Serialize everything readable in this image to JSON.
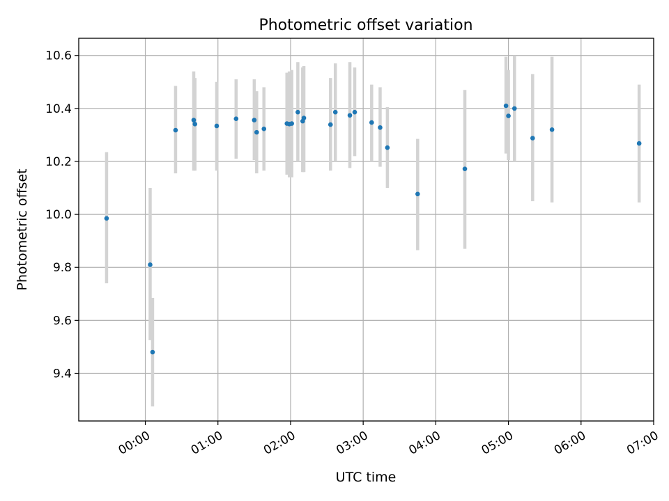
{
  "chart_data": {
    "type": "scatter",
    "title": "Photometric offset variation",
    "xlabel": "UTC time",
    "ylabel": "Photometric offset",
    "x_unit": "minutes",
    "xlim": [
      -55,
      420
    ],
    "ylim": [
      9.22,
      10.665
    ],
    "x_ticks": [
      {
        "value": 0,
        "label": "00:00"
      },
      {
        "value": 60,
        "label": "01:00"
      },
      {
        "value": 120,
        "label": "02:00"
      },
      {
        "value": 180,
        "label": "03:00"
      },
      {
        "value": 240,
        "label": "04:00"
      },
      {
        "value": 300,
        "label": "05:00"
      },
      {
        "value": 360,
        "label": "06:00"
      },
      {
        "value": 420,
        "label": "07:00"
      }
    ],
    "y_ticks": [
      {
        "value": 9.4,
        "label": "9.4"
      },
      {
        "value": 9.6,
        "label": "9.6"
      },
      {
        "value": 9.8,
        "label": "9.8"
      },
      {
        "value": 10.0,
        "label": "10.0"
      },
      {
        "value": 10.2,
        "label": "10.2"
      },
      {
        "value": 10.4,
        "label": "10.4"
      },
      {
        "value": 10.6,
        "label": "10.6"
      }
    ],
    "grid": true,
    "colors": {
      "points": "#1f77b4",
      "error_bars": "#d3d3d3",
      "grid": "#b0b0b0"
    },
    "series": [
      {
        "points": [
          {
            "x": -32,
            "y": 9.985,
            "ylow": 9.74,
            "yhigh": 10.235
          },
          {
            "x": 4,
            "y": 9.81,
            "ylow": 9.525,
            "yhigh": 10.1
          },
          {
            "x": 6,
            "y": 9.48,
            "ylow": 9.275,
            "yhigh": 9.685
          },
          {
            "x": 25,
            "y": 10.318,
            "ylow": 10.155,
            "yhigh": 10.485
          },
          {
            "x": 40,
            "y": 10.356,
            "ylow": 10.165,
            "yhigh": 10.54
          },
          {
            "x": 41,
            "y": 10.341,
            "ylow": 10.165,
            "yhigh": 10.515
          },
          {
            "x": 59,
            "y": 10.334,
            "ylow": 10.165,
            "yhigh": 10.5
          },
          {
            "x": 75,
            "y": 10.361,
            "ylow": 10.21,
            "yhigh": 10.51
          },
          {
            "x": 90,
            "y": 10.356,
            "ylow": 10.205,
            "yhigh": 10.51
          },
          {
            "x": 92,
            "y": 10.31,
            "ylow": 10.155,
            "yhigh": 10.465
          },
          {
            "x": 98,
            "y": 10.323,
            "ylow": 10.165,
            "yhigh": 10.48
          },
          {
            "x": 117,
            "y": 10.343,
            "ylow": 10.15,
            "yhigh": 10.535
          },
          {
            "x": 119,
            "y": 10.341,
            "ylow": 10.14,
            "yhigh": 10.54
          },
          {
            "x": 121,
            "y": 10.343,
            "ylow": 10.14,
            "yhigh": 10.545
          },
          {
            "x": 126,
            "y": 10.386,
            "ylow": 10.2,
            "yhigh": 10.575
          },
          {
            "x": 130,
            "y": 10.352,
            "ylow": 10.16,
            "yhigh": 10.555
          },
          {
            "x": 131,
            "y": 10.364,
            "ylow": 10.16,
            "yhigh": 10.56
          },
          {
            "x": 153,
            "y": 10.339,
            "ylow": 10.165,
            "yhigh": 10.515
          },
          {
            "x": 157,
            "y": 10.386,
            "ylow": 10.2,
            "yhigh": 10.57
          },
          {
            "x": 169,
            "y": 10.374,
            "ylow": 10.175,
            "yhigh": 10.575
          },
          {
            "x": 173,
            "y": 10.386,
            "ylow": 10.22,
            "yhigh": 10.555
          },
          {
            "x": 187,
            "y": 10.347,
            "ylow": 10.2,
            "yhigh": 10.49
          },
          {
            "x": 194,
            "y": 10.328,
            "ylow": 10.18,
            "yhigh": 10.48
          },
          {
            "x": 200,
            "y": 10.252,
            "ylow": 10.1,
            "yhigh": 10.405
          },
          {
            "x": 225,
            "y": 10.077,
            "ylow": 9.865,
            "yhigh": 10.285
          },
          {
            "x": 264,
            "y": 10.172,
            "ylow": 9.87,
            "yhigh": 10.47
          },
          {
            "x": 298,
            "y": 10.41,
            "ylow": 10.23,
            "yhigh": 10.595
          },
          {
            "x": 300,
            "y": 10.372,
            "ylow": 10.205,
            "yhigh": 10.545
          },
          {
            "x": 305,
            "y": 10.4,
            "ylow": 10.2,
            "yhigh": 10.6
          },
          {
            "x": 320,
            "y": 10.288,
            "ylow": 10.05,
            "yhigh": 10.53
          },
          {
            "x": 336,
            "y": 10.32,
            "ylow": 10.045,
            "yhigh": 10.595
          },
          {
            "x": 408,
            "y": 10.268,
            "ylow": 10.045,
            "yhigh": 10.49
          }
        ]
      }
    ]
  }
}
